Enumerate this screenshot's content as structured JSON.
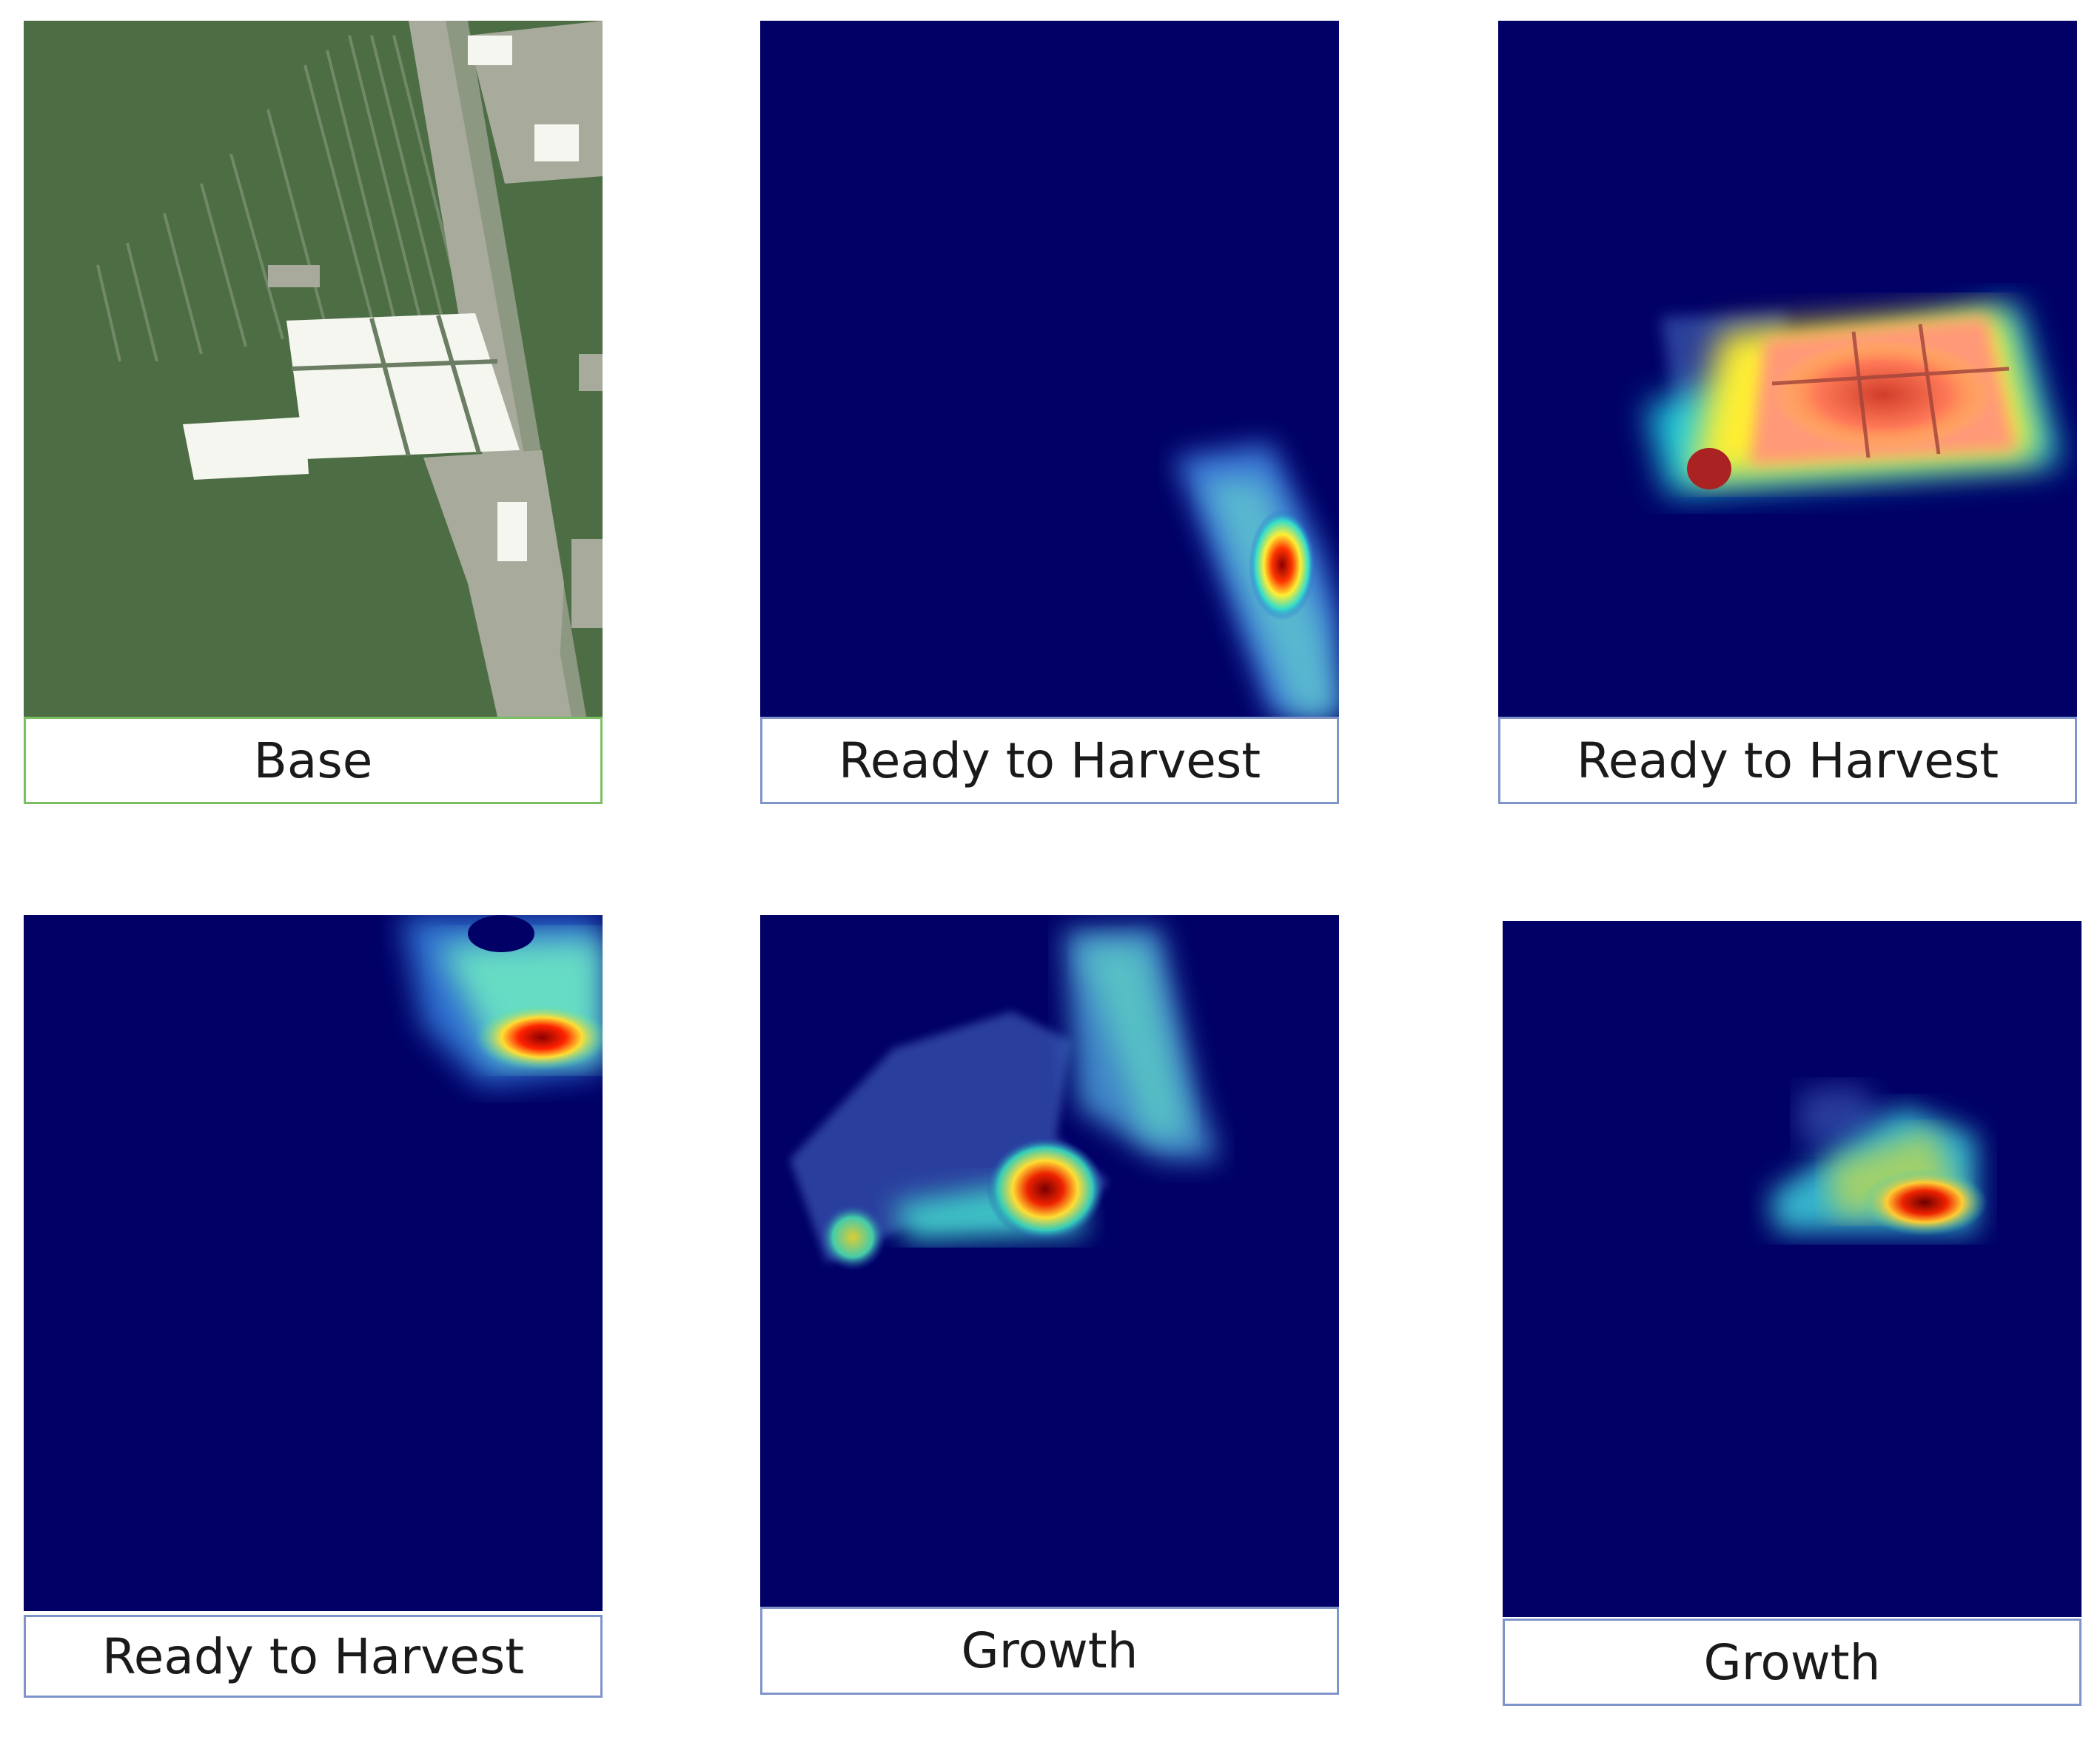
{
  "panels": [
    {
      "label": "Base",
      "kind": "base-map"
    },
    {
      "label": "Ready to Harvest",
      "kind": "heatmap"
    },
    {
      "label": "Ready to Harvest",
      "kind": "heatmap"
    },
    {
      "label": "Ready to Harvest",
      "kind": "heatmap"
    },
    {
      "label": "Growth",
      "kind": "heatmap"
    },
    {
      "label": "Growth",
      "kind": "heatmap"
    }
  ],
  "colors": {
    "forest": "#4d6e45",
    "bare": "#a8aa9c",
    "cleared": "#f5f6ef",
    "heatmap_background": "#000066"
  }
}
